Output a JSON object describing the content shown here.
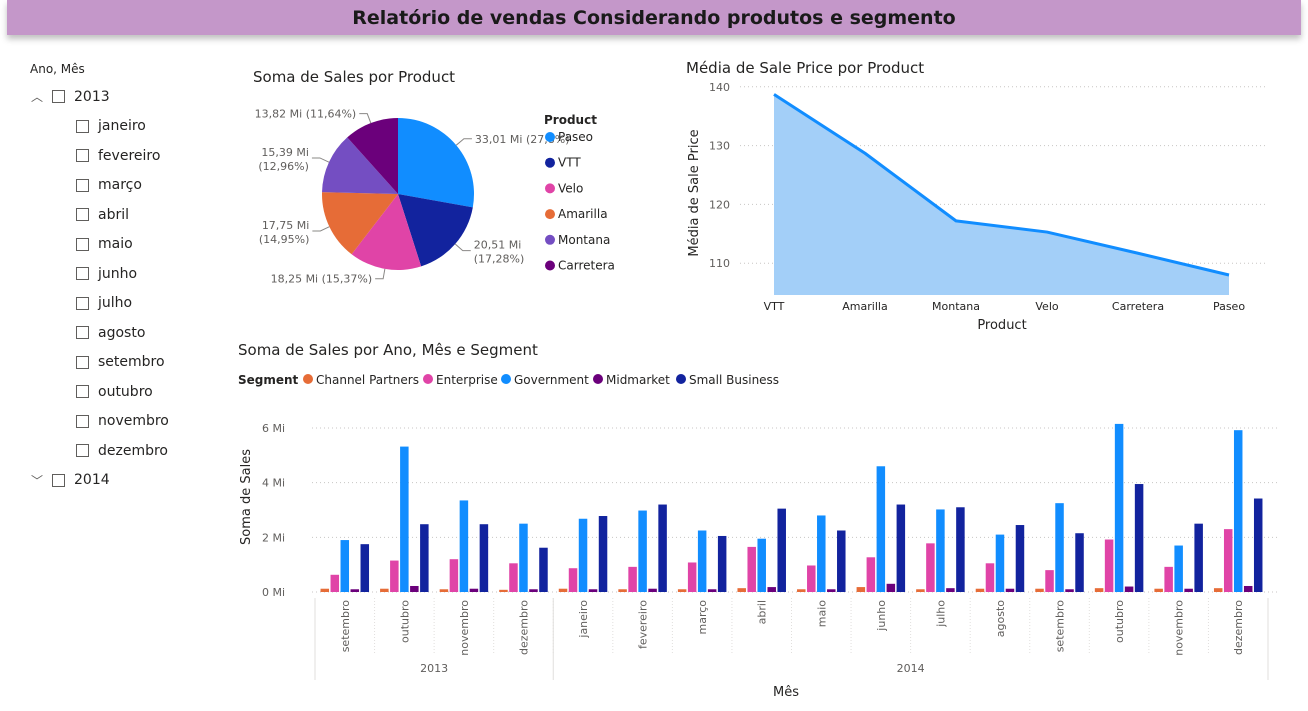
{
  "page_title": "Relatório de vendas Considerando produtos e segmento",
  "slicer": {
    "header": "Ano, Mês",
    "years": [
      {
        "label": "2013",
        "expanded": true,
        "months": [
          "janeiro",
          "fevereiro",
          "março",
          "abril",
          "maio",
          "junho",
          "julho",
          "agosto",
          "setembro",
          "outubro",
          "novembro",
          "dezembro"
        ]
      },
      {
        "label": "2014",
        "expanded": false,
        "months": []
      }
    ],
    "expanded_icon": "chevron-up-icon",
    "collapsed_icon": "chevron-down-icon"
  },
  "chart_data": [
    {
      "type": "pie",
      "title": "Soma de Sales por Product",
      "legend_title": "Product",
      "legend_position": "right",
      "slices": [
        {
          "name": "Paseo",
          "value": 33.01,
          "label": "33,01 Mi (27,8%)",
          "color": "#118dff"
        },
        {
          "name": "VTT",
          "value": 20.51,
          "label": "20,51 Mi (17,28%)",
          "color": "#12239e"
        },
        {
          "name": "Velo",
          "value": 18.25,
          "label": "18,25 Mi (15,37%)",
          "color": "#e044a7"
        },
        {
          "name": "Amarilla",
          "value": 17.75,
          "label": "17,75 Mi (14,95%)",
          "color": "#e66c37"
        },
        {
          "name": "Montana",
          "value": 15.39,
          "label": "15,39 Mi (12,96%)",
          "color": "#744ec2"
        },
        {
          "name": "Carretera",
          "value": 13.82,
          "label": "13,82 Mi (11,64%)",
          "color": "#6b007b"
        }
      ]
    },
    {
      "type": "area",
      "title": "Média de Sale Price por Product",
      "xlabel": "Product",
      "ylabel": "Média de Sale Price",
      "categories": [
        "VTT",
        "Amarilla",
        "Montana",
        "Velo",
        "Carretera",
        "Paseo"
      ],
      "values": [
        138.7,
        128.7,
        117.2,
        115.3,
        111.7,
        108.0
      ],
      "yticks": [
        110,
        120,
        130,
        140
      ],
      "ylim": [
        104.6,
        142
      ],
      "line_color": "#118dff",
      "fill_color": "#a3cff8",
      "grid": true
    },
    {
      "type": "bar",
      "title": "Soma de Sales por Ano, Mês e Segment",
      "legend_title": "Segment",
      "legend_position": "top-left",
      "xlabel": "Mês",
      "ylabel": "Soma de Sales",
      "ylim": [
        0,
        6.2
      ],
      "yticks": [
        0,
        2,
        4,
        6
      ],
      "ytick_labels": [
        "0 Mi",
        "2 Mi",
        "4 Mi",
        "6 Mi"
      ],
      "groups": [
        {
          "label": "2013",
          "months": [
            "setembro",
            "outubro",
            "novembro",
            "dezembro"
          ]
        },
        {
          "label": "2014",
          "months": [
            "janeiro",
            "fevereiro",
            "março",
            "abril",
            "maio",
            "junho",
            "julho",
            "agosto",
            "setembro",
            "outubro",
            "novembro",
            "dezembro"
          ]
        }
      ],
      "series": [
        {
          "name": "Channel Partners",
          "color": "#e66c37",
          "values": [
            0.12,
            0.12,
            0.1,
            0.08,
            0.12,
            0.1,
            0.1,
            0.14,
            0.1,
            0.18,
            0.1,
            0.12,
            0.12,
            0.14,
            0.12,
            0.14
          ]
        },
        {
          "name": "Enterprise",
          "color": "#e044a7",
          "values": [
            0.63,
            1.15,
            1.2,
            1.05,
            0.87,
            0.92,
            1.08,
            1.65,
            0.97,
            1.27,
            1.78,
            1.05,
            0.8,
            1.92,
            0.92,
            2.3
          ]
        },
        {
          "name": "Government",
          "color": "#118dff",
          "values": [
            1.9,
            5.32,
            3.35,
            2.5,
            2.68,
            2.98,
            2.25,
            1.95,
            2.8,
            4.6,
            3.02,
            2.1,
            3.25,
            6.15,
            1.7,
            5.92
          ]
        },
        {
          "name": "Midmarket",
          "color": "#6b007b",
          "values": [
            0.1,
            0.22,
            0.12,
            0.1,
            0.1,
            0.12,
            0.1,
            0.18,
            0.1,
            0.3,
            0.14,
            0.12,
            0.1,
            0.2,
            0.12,
            0.22
          ]
        },
        {
          "name": "Small Business",
          "color": "#12239e",
          "values": [
            1.75,
            2.48,
            2.48,
            1.62,
            2.78,
            3.2,
            2.05,
            3.05,
            2.25,
            3.2,
            3.1,
            2.45,
            2.15,
            3.95,
            2.5,
            3.42
          ]
        }
      ]
    }
  ]
}
